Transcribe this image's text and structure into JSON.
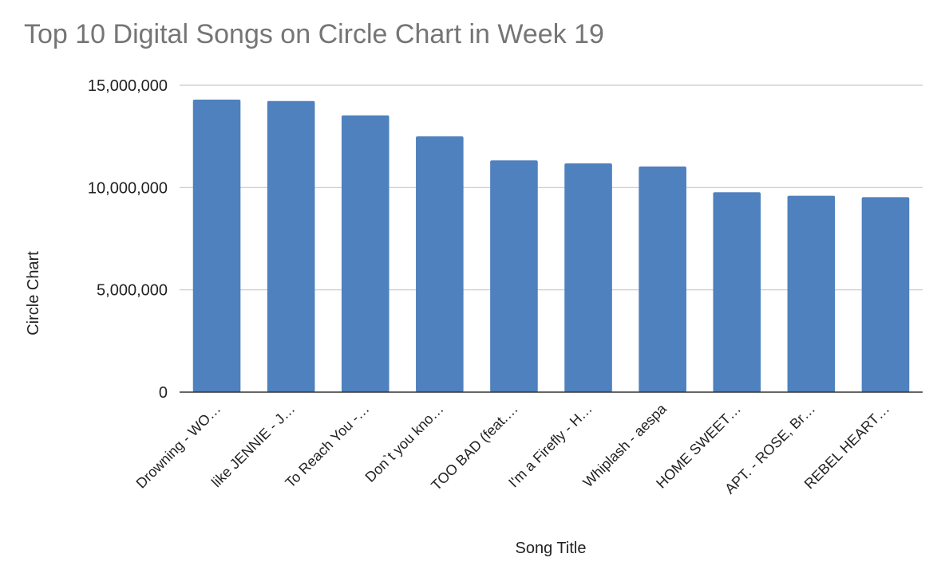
{
  "chart_data": {
    "type": "bar",
    "title": "Top 10 Digital Songs on Circle Chart in Week 19",
    "xlabel": "Song Title",
    "ylabel": "Circle Chart",
    "categories": [
      "Drowning - WO…",
      "like JENNIE - J…",
      "To Reach You -…",
      "Don`t you kno…",
      "TOO BAD (feat.…",
      "I'm a Firefly - H…",
      "Whiplash - aespa",
      "HOME SWEET…",
      "APT. - ROSE, Br…",
      "REBEL HEART…"
    ],
    "values": [
      14300000,
      14230000,
      13530000,
      12500000,
      11330000,
      11180000,
      11030000,
      9770000,
      9600000,
      9530000
    ],
    "ylim": [
      0,
      15000000
    ],
    "yticks": [
      0,
      5000000,
      10000000,
      15000000
    ],
    "ytick_labels": [
      "0",
      "5,000,000",
      "10,000,000",
      "15,000,000"
    ],
    "grid": true,
    "legend": "none",
    "colors": {
      "bar": "#4e81bd",
      "grid": "#c8c8c8",
      "axis": "#333333",
      "title": "#757575"
    }
  }
}
